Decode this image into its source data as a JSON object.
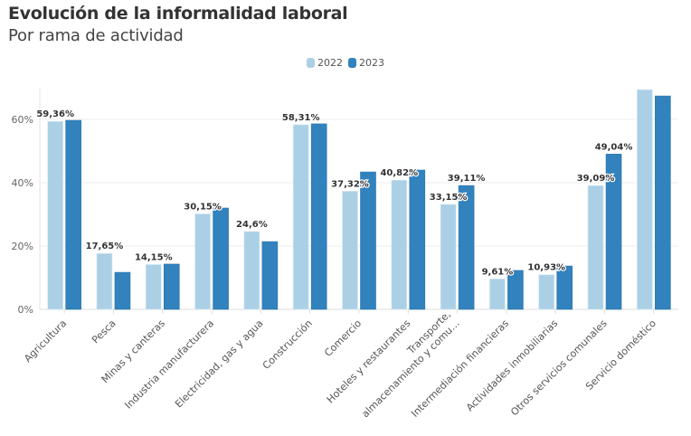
{
  "header": {
    "title": "Evolución de la informalidad laboral",
    "subtitle": "Por rama de actividad"
  },
  "legend": [
    {
      "label": "2022",
      "color": "#abd0e6"
    },
    {
      "label": "2023",
      "color": "#3182bd"
    }
  ],
  "chart_data": {
    "type": "bar",
    "title": "Evolución de la informalidad laboral",
    "subtitle": "Por rama de actividad",
    "xlabel": "",
    "ylabel": "",
    "ylim": [
      0,
      70
    ],
    "y_ticks": [
      "0%",
      "20%",
      "40%",
      "60%"
    ],
    "y_tick_values": [
      0,
      20,
      40,
      60
    ],
    "grid": true,
    "legend_position": "top-center",
    "categories": [
      "Agricultura",
      "Pesca",
      "Minas y canteras",
      "Industria manufacturera",
      "Electricidad, gas y agua",
      "Construcción",
      "Comercio",
      "Hoteles y restaurantes",
      "Transporte, almacenamiento y comu…",
      "Intermediación financieras",
      "Actividades inmobiliarias",
      "Otros servicios comunales",
      "Servicio doméstico"
    ],
    "category_lines": [
      [
        "Agricultura"
      ],
      [
        "Pesca"
      ],
      [
        "Minas y canteras"
      ],
      [
        "Industria manufacturera"
      ],
      [
        "Electricidad, gas y agua"
      ],
      [
        "Construcción"
      ],
      [
        "Comercio"
      ],
      [
        "Hoteles y restaurantes"
      ],
      [
        "Transporte,",
        "almacenamiento y comu…"
      ],
      [
        "Intermediación financieras"
      ],
      [
        "Actividades inmobiliarias"
      ],
      [
        "Otros servicios comunales"
      ],
      [
        "Servicio doméstico"
      ]
    ],
    "series": [
      {
        "name": "2022",
        "color": "#abd0e6",
        "values": [
          59.36,
          17.65,
          14.15,
          30.15,
          24.6,
          58.31,
          37.32,
          40.82,
          33.15,
          9.61,
          10.93,
          39.09,
          69.4
        ]
      },
      {
        "name": "2023",
        "color": "#3182bd",
        "values": [
          59.7,
          11.7,
          14.3,
          32.0,
          21.4,
          58.6,
          43.4,
          44.0,
          39.11,
          12.3,
          13.7,
          49.04,
          67.4
        ]
      }
    ],
    "data_labels": [
      {
        "category": 0,
        "series": 0,
        "text": "59,36%"
      },
      {
        "category": 1,
        "series": 0,
        "text": "17,65%"
      },
      {
        "category": 2,
        "series": 0,
        "text": "14,15%"
      },
      {
        "category": 3,
        "series": 0,
        "text": "30,15%"
      },
      {
        "category": 4,
        "series": 0,
        "text": "24,6%"
      },
      {
        "category": 5,
        "series": 0,
        "text": "58,31%"
      },
      {
        "category": 6,
        "series": 0,
        "text": "37,32%"
      },
      {
        "category": 7,
        "series": 0,
        "text": "40,82%"
      },
      {
        "category": 8,
        "series": 0,
        "text": "33,15%"
      },
      {
        "category": 8,
        "series": 1,
        "text": "39,11%"
      },
      {
        "category": 9,
        "series": 0,
        "text": "9,61%"
      },
      {
        "category": 10,
        "series": 0,
        "text": "10,93%"
      },
      {
        "category": 11,
        "series": 0,
        "text": "39,09%"
      },
      {
        "category": 11,
        "series": 1,
        "text": "49,04%"
      }
    ]
  }
}
